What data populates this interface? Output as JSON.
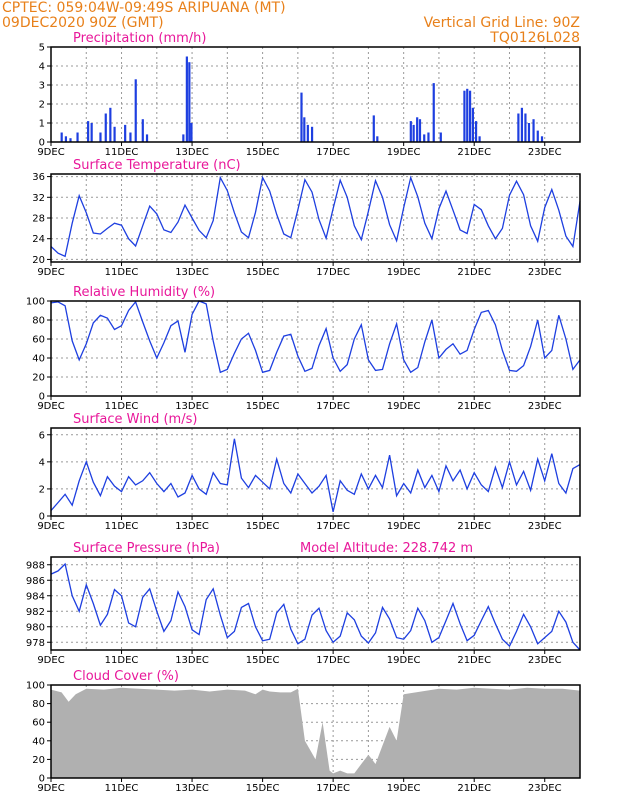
{
  "header": {
    "line1": "CPTEC:   059:04W-09:49S   ARIPUANA (MT)",
    "line2": "09DEC2020 90Z (GMT)",
    "grid_note": "Vertical Grid Line: 90Z",
    "code": "TQ0126L028"
  },
  "colors": {
    "header": "#e8801a",
    "title": "#e8179a",
    "series": "#1e3fe0",
    "cloud": "#b0b0b0"
  },
  "chart_data": [
    {
      "type": "bar",
      "title": "Precipitation (mm/h)",
      "x_ticks": [
        "9DEC",
        "11DEC",
        "13DEC",
        "15DEC",
        "17DEC",
        "19DEC",
        "21DEC",
        "23DEC"
      ],
      "xlim": [
        9,
        24
      ],
      "ylim": [
        0,
        5
      ],
      "y_ticks": [
        0,
        1,
        2,
        3,
        4,
        5
      ],
      "bars": [
        {
          "x": 9.3,
          "y": 0.5
        },
        {
          "x": 9.42,
          "y": 0.3
        },
        {
          "x": 9.55,
          "y": 0.2
        },
        {
          "x": 9.75,
          "y": 0.5
        },
        {
          "x": 10.05,
          "y": 1.1
        },
        {
          "x": 10.15,
          "y": 1.0
        },
        {
          "x": 10.4,
          "y": 0.5
        },
        {
          "x": 10.55,
          "y": 1.5
        },
        {
          "x": 10.68,
          "y": 1.8
        },
        {
          "x": 10.8,
          "y": 0.8
        },
        {
          "x": 11.1,
          "y": 0.9
        },
        {
          "x": 11.25,
          "y": 0.5
        },
        {
          "x": 11.4,
          "y": 3.3
        },
        {
          "x": 11.6,
          "y": 1.2
        },
        {
          "x": 11.72,
          "y": 0.4
        },
        {
          "x": 12.75,
          "y": 0.4
        },
        {
          "x": 12.85,
          "y": 4.5
        },
        {
          "x": 12.92,
          "y": 4.2
        },
        {
          "x": 12.98,
          "y": 1.0
        },
        {
          "x": 16.1,
          "y": 2.6
        },
        {
          "x": 16.18,
          "y": 1.3
        },
        {
          "x": 16.28,
          "y": 0.9
        },
        {
          "x": 16.4,
          "y": 0.8
        },
        {
          "x": 18.15,
          "y": 1.4
        },
        {
          "x": 18.25,
          "y": 0.3
        },
        {
          "x": 19.2,
          "y": 1.1
        },
        {
          "x": 19.28,
          "y": 0.9
        },
        {
          "x": 19.38,
          "y": 1.3
        },
        {
          "x": 19.46,
          "y": 1.2
        },
        {
          "x": 19.58,
          "y": 0.4
        },
        {
          "x": 19.7,
          "y": 0.5
        },
        {
          "x": 19.85,
          "y": 3.1
        },
        {
          "x": 20.05,
          "y": 0.5
        },
        {
          "x": 20.72,
          "y": 2.7
        },
        {
          "x": 20.8,
          "y": 2.8
        },
        {
          "x": 20.88,
          "y": 2.7
        },
        {
          "x": 20.96,
          "y": 1.8
        },
        {
          "x": 21.05,
          "y": 1.1
        },
        {
          "x": 21.15,
          "y": 0.3
        },
        {
          "x": 22.25,
          "y": 1.5
        },
        {
          "x": 22.35,
          "y": 1.8
        },
        {
          "x": 22.45,
          "y": 1.5
        },
        {
          "x": 22.55,
          "y": 1.0
        },
        {
          "x": 22.68,
          "y": 1.2
        },
        {
          "x": 22.8,
          "y": 0.6
        },
        {
          "x": 22.92,
          "y": 0.3
        }
      ]
    },
    {
      "type": "line",
      "title": "Surface Temperature (nC)",
      "x_ticks": [
        "9DEC",
        "11DEC",
        "13DEC",
        "15DEC",
        "17DEC",
        "19DEC",
        "21DEC",
        "23DEC"
      ],
      "xlim": [
        9,
        24
      ],
      "ylim": [
        19.5,
        36.5
      ],
      "y_ticks": [
        20,
        24,
        28,
        32,
        36
      ],
      "x": [
        9.0,
        9.2,
        9.4,
        9.6,
        9.8,
        10.0,
        10.2,
        10.4,
        10.6,
        10.8,
        11.0,
        11.2,
        11.4,
        11.6,
        11.8,
        12.0,
        12.2,
        12.4,
        12.6,
        12.8,
        13.0,
        13.2,
        13.4,
        13.6,
        13.8,
        14.0,
        14.2,
        14.4,
        14.6,
        14.8,
        15.0,
        15.2,
        15.4,
        15.6,
        15.8,
        16.0,
        16.2,
        16.4,
        16.6,
        16.8,
        17.0,
        17.2,
        17.4,
        17.6,
        17.8,
        18.0,
        18.2,
        18.4,
        18.6,
        18.8,
        19.0,
        19.2,
        19.4,
        19.6,
        19.8,
        20.0,
        20.2,
        20.4,
        20.6,
        20.8,
        21.0,
        21.2,
        21.4,
        21.6,
        21.8,
        22.0,
        22.2,
        22.4,
        22.6,
        22.8,
        23.0,
        23.2,
        23.4,
        23.6,
        23.8,
        24.0
      ],
      "y": [
        22.5,
        21.2,
        20.6,
        27.0,
        32.3,
        29.0,
        25.1,
        24.9,
        26.0,
        27.0,
        26.6,
        24.0,
        22.6,
        26.5,
        30.3,
        28.8,
        25.7,
        25.2,
        27.2,
        30.5,
        28.0,
        25.6,
        24.2,
        27.5,
        35.8,
        33.3,
        29.0,
        25.3,
        24.2,
        29.1,
        35.8,
        33.2,
        28.7,
        24.9,
        24.2,
        29.6,
        35.4,
        33.0,
        27.7,
        24.1,
        29.8,
        35.3,
        32.0,
        26.5,
        23.8,
        29.3,
        35.2,
        32.0,
        26.7,
        23.6,
        30.0,
        35.8,
        32.1,
        27.0,
        24.0,
        29.8,
        33.2,
        29.5,
        25.7,
        25.0,
        30.6,
        29.6,
        26.5,
        24.0,
        26.0,
        32.4,
        35.1,
        32.5,
        26.5,
        23.5,
        30.0,
        33.5,
        29.5,
        24.5,
        22.5,
        31.2
      ]
    },
    {
      "type": "line",
      "title": "Relative Humidity (%)",
      "x_ticks": [
        "9DEC",
        "11DEC",
        "13DEC",
        "15DEC",
        "17DEC",
        "19DEC",
        "21DEC",
        "23DEC"
      ],
      "xlim": [
        9,
        24
      ],
      "ylim": [
        0,
        100
      ],
      "y_ticks": [
        0,
        20,
        40,
        60,
        80,
        100
      ],
      "x": [
        9.0,
        9.2,
        9.4,
        9.6,
        9.8,
        10.0,
        10.2,
        10.4,
        10.6,
        10.8,
        11.0,
        11.2,
        11.4,
        11.6,
        11.8,
        12.0,
        12.2,
        12.4,
        12.6,
        12.8,
        13.0,
        13.2,
        13.4,
        13.6,
        13.8,
        14.0,
        14.2,
        14.4,
        14.6,
        14.8,
        15.0,
        15.2,
        15.4,
        15.6,
        15.8,
        16.0,
        16.2,
        16.4,
        16.6,
        16.8,
        17.0,
        17.2,
        17.4,
        17.6,
        17.8,
        18.0,
        18.2,
        18.4,
        18.6,
        18.8,
        19.0,
        19.2,
        19.4,
        19.6,
        19.8,
        20.0,
        20.2,
        20.4,
        20.6,
        20.8,
        21.0,
        21.2,
        21.4,
        21.6,
        21.8,
        22.0,
        22.2,
        22.4,
        22.6,
        22.8,
        23.0,
        23.2,
        23.4,
        23.6,
        23.8,
        24.0
      ],
      "y": [
        98,
        99,
        95,
        58,
        38,
        55,
        77,
        85,
        82,
        70,
        74,
        90,
        99,
        78,
        58,
        40,
        56,
        74,
        79,
        46,
        86,
        100,
        97,
        58,
        25,
        28,
        45,
        60,
        66,
        48,
        25,
        27,
        46,
        63,
        65,
        42,
        26,
        29,
        53,
        71,
        40,
        26,
        33,
        60,
        75,
        38,
        27,
        28,
        55,
        76,
        38,
        25,
        30,
        57,
        80,
        40,
        49,
        55,
        44,
        48,
        70,
        88,
        90,
        75,
        48,
        27,
        26,
        32,
        52,
        80,
        40,
        48,
        85,
        60,
        28,
        38
      ]
    },
    {
      "type": "line",
      "title": "Surface Wind (m/s)",
      "x_ticks": [
        "9DEC",
        "11DEC",
        "13DEC",
        "15DEC",
        "17DEC",
        "19DEC",
        "21DEC",
        "23DEC"
      ],
      "xlim": [
        9,
        24
      ],
      "ylim": [
        0,
        6.5
      ],
      "y_ticks": [
        0,
        2,
        4,
        6
      ],
      "x": [
        9.0,
        9.2,
        9.4,
        9.6,
        9.8,
        10.0,
        10.2,
        10.4,
        10.6,
        10.8,
        11.0,
        11.2,
        11.4,
        11.6,
        11.8,
        12.0,
        12.2,
        12.4,
        12.6,
        12.8,
        13.0,
        13.2,
        13.4,
        13.6,
        13.8,
        14.0,
        14.2,
        14.4,
        14.6,
        14.8,
        15.0,
        15.2,
        15.4,
        15.6,
        15.8,
        16.0,
        16.2,
        16.4,
        16.6,
        16.8,
        17.0,
        17.2,
        17.4,
        17.6,
        17.8,
        18.0,
        18.2,
        18.4,
        18.6,
        18.8,
        19.0,
        19.2,
        19.4,
        19.6,
        19.8,
        20.0,
        20.2,
        20.4,
        20.6,
        20.8,
        21.0,
        21.2,
        21.4,
        21.6,
        21.8,
        22.0,
        22.2,
        22.4,
        22.6,
        22.8,
        23.0,
        23.2,
        23.4,
        23.6,
        23.8,
        24.0
      ],
      "y": [
        0.4,
        1.0,
        1.6,
        0.8,
        2.6,
        4.0,
        2.5,
        1.5,
        2.9,
        2.2,
        1.8,
        2.9,
        2.3,
        2.6,
        3.2,
        2.4,
        1.8,
        2.4,
        1.4,
        1.7,
        3.0,
        2.0,
        1.6,
        3.2,
        2.4,
        2.3,
        5.7,
        2.8,
        2.1,
        3.0,
        2.5,
        2.0,
        4.2,
        2.4,
        1.7,
        3.1,
        2.4,
        1.7,
        2.2,
        3.0,
        0.3,
        2.6,
        1.9,
        1.6,
        3.1,
        2.0,
        3.0,
        2.1,
        4.5,
        1.5,
        2.4,
        1.7,
        3.4,
        2.1,
        3.0,
        1.8,
        3.7,
        2.6,
        3.4,
        2.0,
        3.2,
        2.3,
        1.8,
        3.6,
        2.1,
        4.0,
        2.3,
        3.3,
        1.9,
        4.2,
        2.6,
        4.6,
        2.4,
        1.7,
        3.5,
        3.8
      ]
    },
    {
      "type": "line",
      "title": "Surface Pressure (hPa)",
      "annotation": "Model Altitude: 228.742 m",
      "x_ticks": [
        "9DEC",
        "11DEC",
        "13DEC",
        "15DEC",
        "17DEC",
        "19DEC",
        "21DEC",
        "23DEC"
      ],
      "xlim": [
        9,
        24
      ],
      "ylim": [
        977,
        989
      ],
      "y_ticks": [
        978,
        980,
        982,
        984,
        986,
        988
      ],
      "x": [
        9.0,
        9.2,
        9.4,
        9.6,
        9.8,
        10.0,
        10.2,
        10.4,
        10.6,
        10.8,
        11.0,
        11.2,
        11.4,
        11.6,
        11.8,
        12.0,
        12.2,
        12.4,
        12.6,
        12.8,
        13.0,
        13.2,
        13.4,
        13.6,
        13.8,
        14.0,
        14.2,
        14.4,
        14.6,
        14.8,
        15.0,
        15.2,
        15.4,
        15.6,
        15.8,
        16.0,
        16.2,
        16.4,
        16.6,
        16.8,
        17.0,
        17.2,
        17.4,
        17.6,
        17.8,
        18.0,
        18.2,
        18.4,
        18.6,
        18.8,
        19.0,
        19.2,
        19.4,
        19.6,
        19.8,
        20.0,
        20.2,
        20.4,
        20.6,
        20.8,
        21.0,
        21.2,
        21.4,
        21.6,
        21.8,
        22.0,
        22.2,
        22.4,
        22.6,
        22.8,
        23.0,
        23.2,
        23.4,
        23.6,
        23.8,
        24.0
      ],
      "y": [
        986.8,
        987.2,
        988.1,
        984.0,
        982.0,
        985.4,
        983.0,
        980.2,
        981.6,
        984.8,
        984.0,
        980.5,
        980.0,
        983.8,
        984.9,
        982.0,
        979.4,
        980.8,
        984.5,
        982.6,
        979.6,
        979.0,
        983.5,
        984.9,
        981.5,
        978.6,
        979.4,
        982.5,
        983.0,
        980.0,
        978.2,
        978.4,
        981.8,
        982.9,
        979.7,
        977.8,
        978.4,
        981.5,
        982.4,
        979.5,
        978.0,
        978.8,
        981.8,
        980.9,
        978.8,
        977.9,
        979.2,
        982.5,
        981.0,
        978.6,
        978.4,
        979.5,
        982.4,
        980.8,
        978.0,
        978.6,
        980.8,
        983.0,
        980.4,
        978.2,
        978.9,
        980.8,
        982.6,
        980.4,
        978.4,
        977.5,
        979.4,
        981.6,
        980.0,
        977.8,
        978.6,
        979.4,
        982.0,
        980.6,
        978.0,
        975.9
      ]
    },
    {
      "type": "area",
      "title": "Cloud Cover (%)",
      "x_ticks": [
        "9DEC",
        "11DEC",
        "13DEC",
        "15DEC",
        "17DEC",
        "19DEC",
        "21DEC",
        "23DEC"
      ],
      "xlim": [
        9,
        24
      ],
      "ylim": [
        0,
        100
      ],
      "y_ticks": [
        0,
        20,
        40,
        60,
        80,
        100
      ],
      "x": [
        9.0,
        9.3,
        9.5,
        9.7,
        10.0,
        10.5,
        11.0,
        11.5,
        12.0,
        12.5,
        13.0,
        13.5,
        14.0,
        14.5,
        14.8,
        15.0,
        15.2,
        15.5,
        15.8,
        16.0,
        16.2,
        16.5,
        16.7,
        16.9,
        17.0,
        17.2,
        17.4,
        17.6,
        17.8,
        18.0,
        18.2,
        18.4,
        18.6,
        18.8,
        19.0,
        19.5,
        20.0,
        20.5,
        21.0,
        21.5,
        22.0,
        22.5,
        23.0,
        23.5,
        24.0
      ],
      "y": [
        95,
        92,
        82,
        90,
        96,
        95,
        97,
        96,
        95,
        94,
        95,
        93,
        95,
        94,
        90,
        95,
        93,
        92,
        92,
        96,
        40,
        20,
        60,
        8,
        5,
        8,
        5,
        5,
        15,
        25,
        15,
        35,
        55,
        40,
        90,
        93,
        96,
        95,
        97,
        96,
        95,
        97,
        96,
        96,
        94
      ]
    }
  ]
}
